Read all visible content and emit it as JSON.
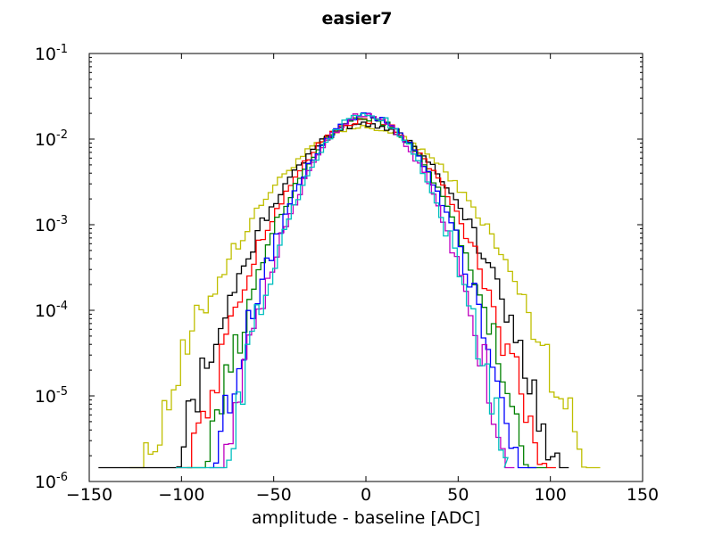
{
  "chart_data": {
    "type": "line",
    "title": "easier7",
    "xlabel": "amplitude - baseline [ADC]",
    "ylabel": "",
    "xlim": [
      -150,
      150
    ],
    "ylim": [
      1e-06,
      0.1
    ],
    "yscale": "log",
    "grid": false,
    "legend": "none",
    "x_ticks": [
      "−150",
      "−100",
      "−50",
      "0",
      "50",
      "100",
      "150"
    ],
    "x_tick_values": [
      -150,
      -100,
      -50,
      0,
      50,
      100,
      150
    ],
    "y_ticks": [
      {
        "base": "10",
        "exp": "-6"
      },
      {
        "base": "10",
        "exp": "-5"
      },
      {
        "base": "10",
        "exp": "-4"
      },
      {
        "base": "10",
        "exp": "-3"
      },
      {
        "base": "10",
        "exp": "-2"
      },
      {
        "base": "10",
        "exp": "-1"
      }
    ],
    "y_tick_values": [
      1e-06,
      1e-05,
      0.0001,
      0.001,
      0.01,
      0.1
    ],
    "series_style": "step histogram",
    "series": [
      {
        "color": "#bfbf00",
        "sigma": 28,
        "peak": 0.0135,
        "x_min": -128,
        "x_max": 125
      },
      {
        "color": "#000000",
        "sigma": 24,
        "peak": 0.015,
        "x_min": -145,
        "x_max": 108
      },
      {
        "color": "#ff0000",
        "sigma": 22,
        "peak": 0.0165,
        "x_min": -102,
        "x_max": 103
      },
      {
        "color": "#008000",
        "sigma": 20,
        "peak": 0.0175,
        "x_min": -97,
        "x_max": 98
      },
      {
        "color": "#0000ff",
        "sigma": 19,
        "peak": 0.0185,
        "x_min": -85,
        "x_max": 92
      },
      {
        "color": "#bf00bf",
        "sigma": 17.5,
        "peak": 0.0195,
        "x_min": -82,
        "x_max": 80
      },
      {
        "color": "#00bfbf",
        "sigma": 17.5,
        "peak": 0.0195,
        "x_min": -103,
        "x_max": 75
      }
    ]
  }
}
